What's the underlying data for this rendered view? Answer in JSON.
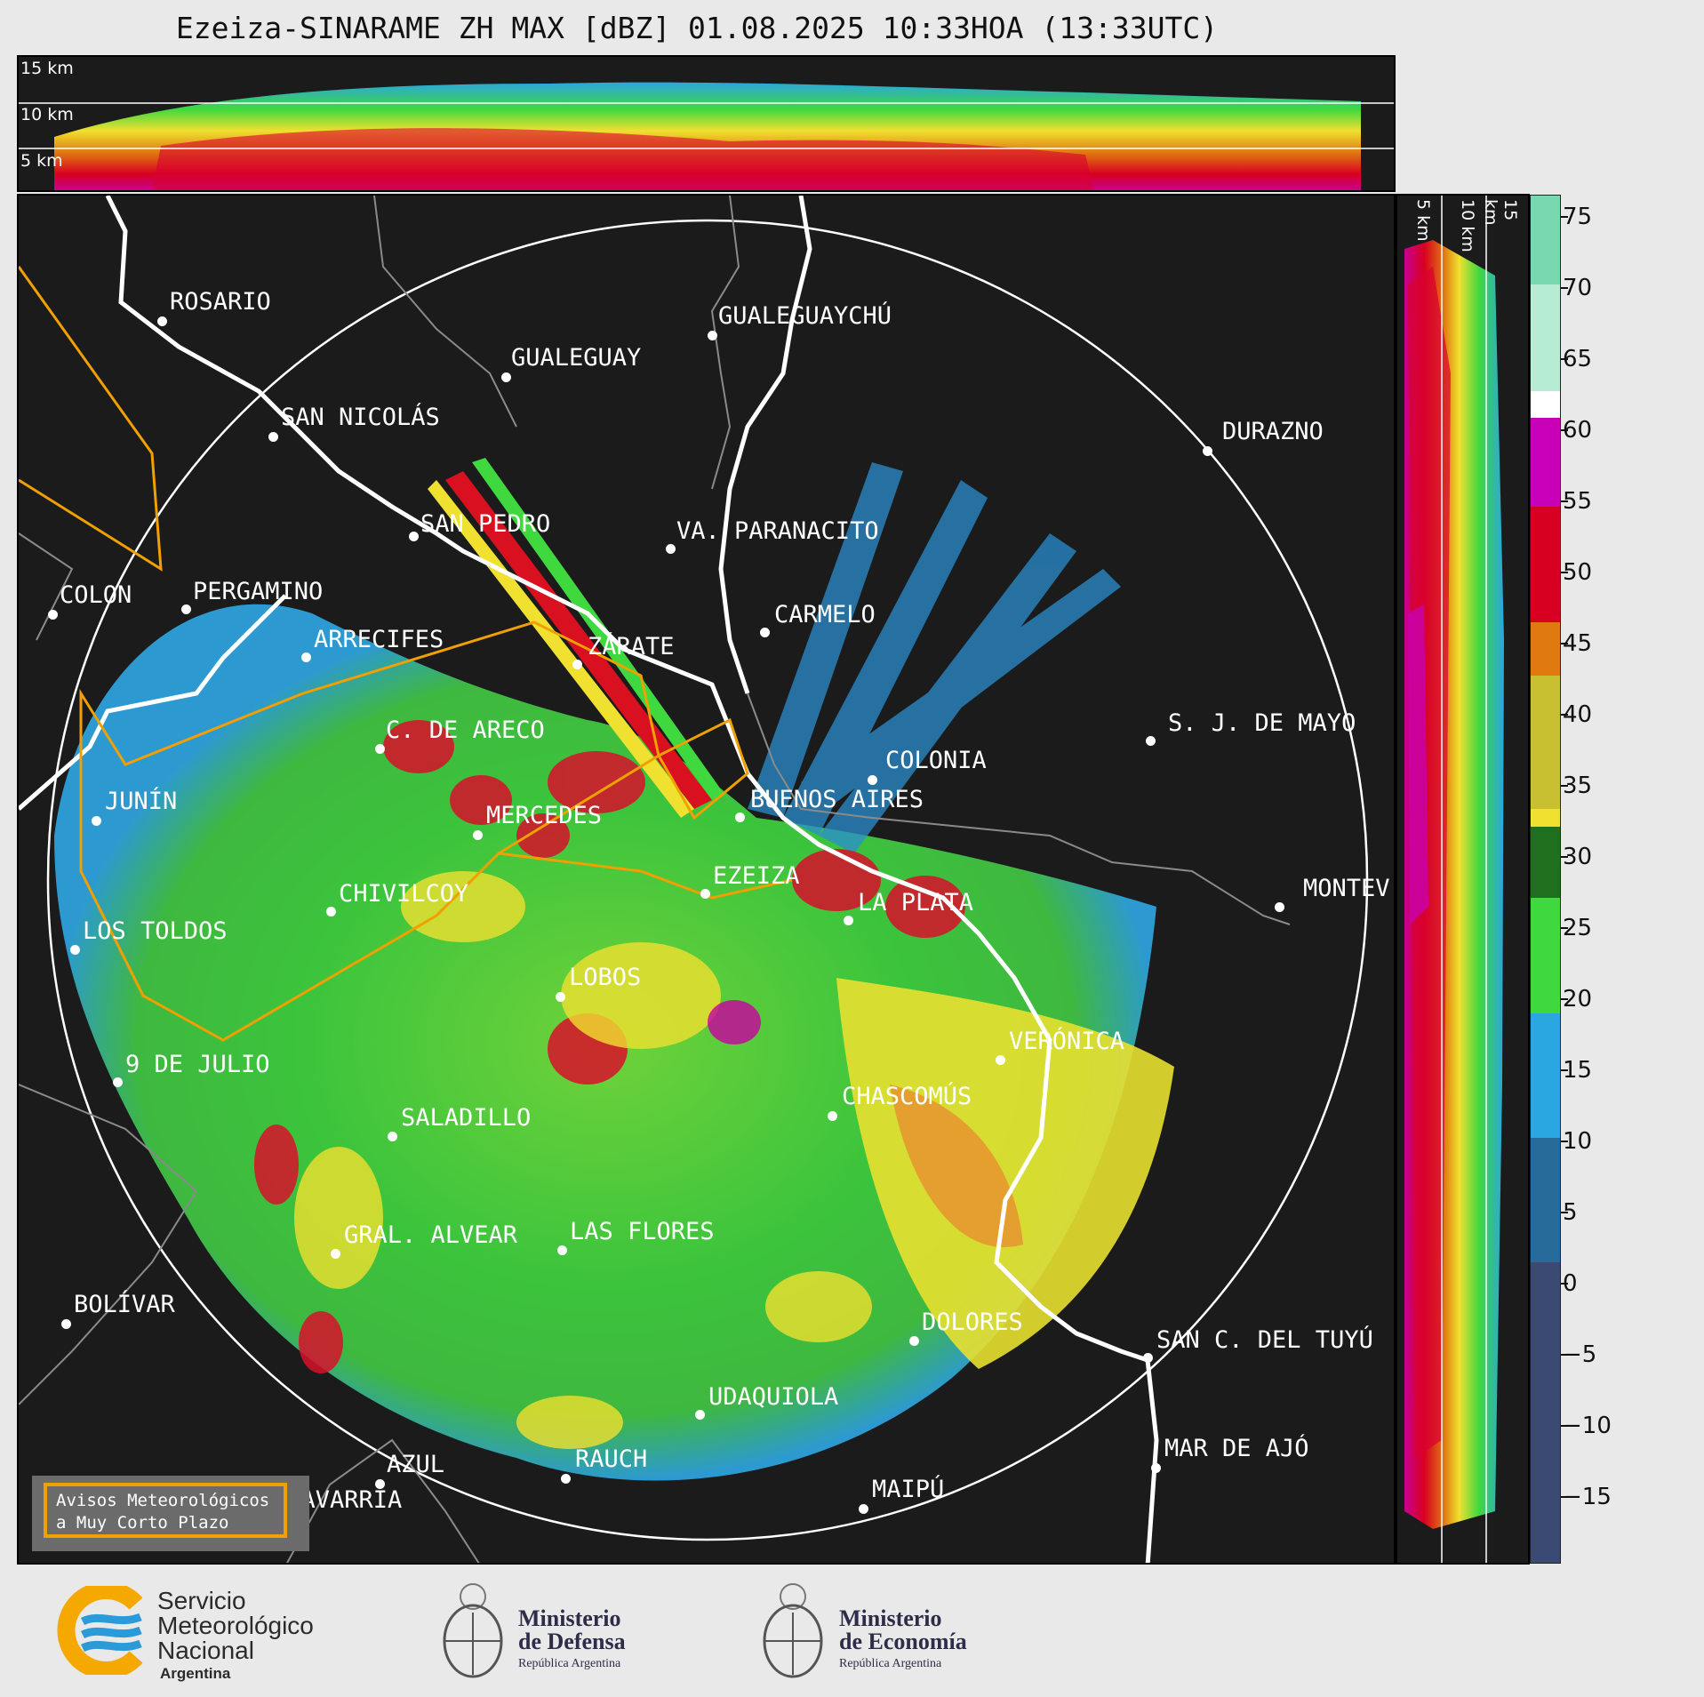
{
  "title": "Ezeiza-SINARAME ZH MAX [dBZ] 01.08.2025 10:33HOA (13:33UTC)",
  "top_panel": {
    "altitudes": [
      "15 km",
      "10 km",
      "5 km"
    ]
  },
  "side_panel": {
    "altitudes": [
      "5 km",
      "10 km",
      "15 km"
    ]
  },
  "colorbar": {
    "ticks": [
      "75",
      "70",
      "65",
      "60",
      "55",
      "50",
      "45",
      "40",
      "35",
      "30",
      "25",
      "20",
      "15",
      "10",
      "5",
      "0",
      "−5",
      "−10",
      "−15"
    ],
    "vmin": -20,
    "vmax": 76
  },
  "cities": [
    {
      "name": "ROSARIO"
    },
    {
      "name": "GUALEGUAYCHÚ"
    },
    {
      "name": "GUALEGUAY"
    },
    {
      "name": "SAN NICOLÁS"
    },
    {
      "name": "DURAZNO"
    },
    {
      "name": "SAN PEDRO"
    },
    {
      "name": "VA. PARANACITO"
    },
    {
      "name": "COLON"
    },
    {
      "name": "PERGAMINO"
    },
    {
      "name": "CARMELO"
    },
    {
      "name": "ARRECIFES"
    },
    {
      "name": "ZÁRATE"
    },
    {
      "name": "C. DE ARECO"
    },
    {
      "name": "S. J. DE MAYO"
    },
    {
      "name": "COLONIA"
    },
    {
      "name": "JUNÍN"
    },
    {
      "name": "BUENOS AIRES"
    },
    {
      "name": "MERCEDES"
    },
    {
      "name": "EZEIZA"
    },
    {
      "name": "CHIVILCOY"
    },
    {
      "name": "LA PLATA"
    },
    {
      "name": "MONTEV"
    },
    {
      "name": "LOS TOLDOS"
    },
    {
      "name": "LOBOS"
    },
    {
      "name": "VERÓNICA"
    },
    {
      "name": "9 DE JULIO"
    },
    {
      "name": "CHASCOMÚS"
    },
    {
      "name": "SALADILLO"
    },
    {
      "name": "GRAL. ALVEAR"
    },
    {
      "name": "LAS FLORES"
    },
    {
      "name": "BOLÍVAR"
    },
    {
      "name": "DOLORES"
    },
    {
      "name": "SAN C. DEL TUYÚ"
    },
    {
      "name": "UDAQUIOLA"
    },
    {
      "name": "AZUL"
    },
    {
      "name": "RAUCH"
    },
    {
      "name": "MAR DE AJÓ"
    },
    {
      "name": "OLAVARRÍA"
    },
    {
      "name": "MAIPÚ"
    }
  ],
  "avisos": {
    "line1": "Avisos Meteorológicos",
    "line2": "a Muy Corto Plazo"
  },
  "footer": {
    "smn_line1": "Servicio",
    "smn_line2": "Meteorológico",
    "smn_line3": "Nacional",
    "smn_line4": "Argentina",
    "def_line1": "Ministerio",
    "def_line2": "de Defensa",
    "def_line3": "República Argentina",
    "eco_line1": "Ministerio",
    "eco_line2": "de Economía",
    "eco_line3": "República Argentina"
  }
}
